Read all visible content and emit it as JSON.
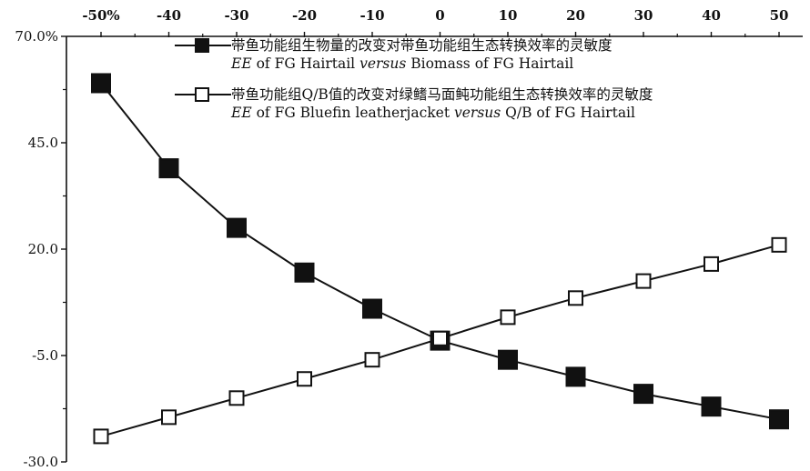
{
  "chart_data": {
    "type": "line",
    "x_tick_labels": [
      "-50%",
      "-40",
      "-30",
      "-20",
      "-10",
      "0",
      "10",
      "20",
      "30",
      "40",
      "50"
    ],
    "x": [
      -50,
      -40,
      -30,
      -20,
      -10,
      0,
      10,
      20,
      30,
      40,
      50
    ],
    "xlim": [
      -50,
      50
    ],
    "y_tick_labels": [
      "70.0%",
      "45.0",
      "20.0",
      "-5.0",
      "-30.0"
    ],
    "y_ticks": [
      70,
      45,
      20,
      -5,
      -30
    ],
    "ylim": [
      -30,
      70
    ],
    "grid": false,
    "legend_placement": "top-right",
    "series": [
      {
        "name_cn": "带鱼功能组生物量的改变对带鱼功能组生态转换效率的灵敏度",
        "name_en": {
          "prefix": "EE",
          "mid": " of FG Hairtail ",
          "versus": "versus",
          "suffix": " Biomass of FG Hairtail"
        },
        "marker": "filled-square",
        "values": [
          59,
          39,
          25,
          14.5,
          6,
          -1.5,
          -6,
          -10,
          -14,
          -17,
          -20
        ]
      },
      {
        "name_cn": "带鱼功能组Q/B值的改变对绿鳍马面鲀功能组生态转换效率的灵敏度",
        "name_en": {
          "prefix": "EE",
          "mid": " of FG Bluefin leatherjacket ",
          "versus": "versus",
          "suffix": " Q/B of FG Hairtail"
        },
        "marker": "hollow-square",
        "values": [
          -24,
          -19.5,
          -15,
          -10.5,
          -6,
          -1,
          4,
          8.5,
          12.5,
          16.5,
          21
        ]
      }
    ]
  }
}
